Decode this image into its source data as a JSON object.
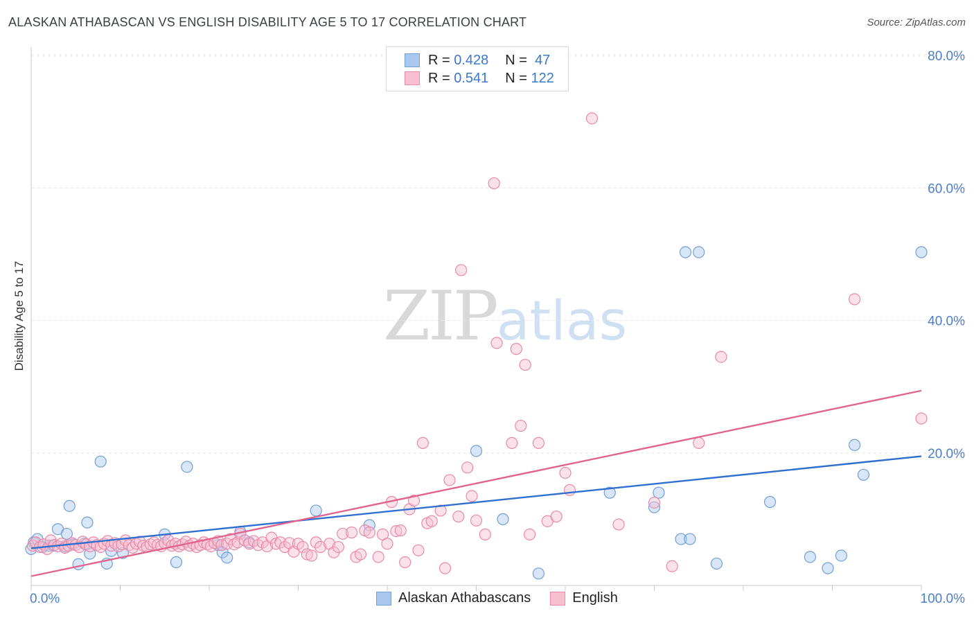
{
  "title": "ALASKAN ATHABASCAN VS ENGLISH DISABILITY AGE 5 TO 17 CORRELATION CHART",
  "source": "Source: ZipAtlas.com",
  "watermark": {
    "zip": "ZIP",
    "atlas": "atlas"
  },
  "legend": {
    "rows": [
      {
        "r_label": "R =",
        "r": "0.428",
        "n_label": "N =",
        "n": "47",
        "color": "#aac8ee",
        "border": "#6f9fd8"
      },
      {
        "r_label": "R =",
        "r": "0.541",
        "n_label": "N =",
        "n": "122",
        "color": "#f7bfd0",
        "border": "#e889a8"
      }
    ]
  },
  "bottom_legend": [
    {
      "label": "Alaskan Athabascans",
      "color": "#aac8ee",
      "border": "#6f9fd8"
    },
    {
      "label": "English",
      "color": "#f7bfd0",
      "border": "#e889a8"
    }
  ],
  "chart_data": {
    "type": "scatter",
    "title": "ALASKAN ATHABASCAN VS ENGLISH DISABILITY AGE 5 TO 17 CORRELATION CHART",
    "xlabel": "",
    "ylabel": "Disability Age 5 to 17",
    "xlim": [
      0,
      100
    ],
    "ylim": [
      0,
      82
    ],
    "x_tick_labels": [
      "0.0%",
      "100.0%"
    ],
    "y_ticks": [
      20,
      40,
      60,
      80
    ],
    "y_tick_labels": [
      "20.0%",
      "40.0%",
      "60.0%",
      "80.0%"
    ],
    "grid": true,
    "series": [
      {
        "name": "Alaskan Athabascans",
        "color": "#6f9fd8",
        "fill": "#aac8ee",
        "trend": [
          [
            0,
            5.6
          ],
          [
            100,
            19.5
          ]
        ],
        "points": [
          [
            0.3,
            6.5
          ],
          [
            0.7,
            7
          ],
          [
            1.3,
            5.8
          ],
          [
            2,
            6
          ],
          [
            3,
            8.5
          ],
          [
            3.8,
            5.9
          ],
          [
            4,
            7.8
          ],
          [
            4.3,
            12
          ],
          [
            4.7,
            6.2
          ],
          [
            5.3,
            3.2
          ],
          [
            6,
            6.3
          ],
          [
            6.3,
            9.5
          ],
          [
            6.6,
            4.8
          ],
          [
            7.8,
            18.7
          ],
          [
            8.5,
            3.3
          ],
          [
            9,
            5.2
          ],
          [
            10.3,
            4.9
          ],
          [
            15,
            7.7
          ],
          [
            16.3,
            3.5
          ],
          [
            17.5,
            17.9
          ],
          [
            21,
            6.1
          ],
          [
            21.5,
            5
          ],
          [
            22,
            4.2
          ],
          [
            23.5,
            8.1
          ],
          [
            24.5,
            6.5
          ],
          [
            32,
            11.3
          ],
          [
            38,
            9.1
          ],
          [
            50,
            20.3
          ],
          [
            53,
            10
          ],
          [
            57,
            1.8
          ],
          [
            65,
            14
          ],
          [
            70,
            11.8
          ],
          [
            70.5,
            14
          ],
          [
            73,
            7
          ],
          [
            73.5,
            50.3
          ],
          [
            74,
            7
          ],
          [
            75,
            50.3
          ],
          [
            77,
            3.3
          ],
          [
            83,
            12.6
          ],
          [
            87.5,
            4.3
          ],
          [
            89.5,
            2.6
          ],
          [
            91,
            4.5
          ],
          [
            92.5,
            21.2
          ],
          [
            93.5,
            16.7
          ],
          [
            100,
            50.3
          ],
          [
            0,
            5.5
          ],
          [
            2.5,
            6
          ]
        ]
      },
      {
        "name": "English",
        "color": "#e889a8",
        "fill": "#f7bfd0",
        "trend": [
          [
            0,
            1.4
          ],
          [
            100,
            29.4
          ]
        ],
        "points": [
          [
            0.2,
            6
          ],
          [
            0.5,
            6.5
          ],
          [
            1,
            5.8
          ],
          [
            1.4,
            6.2
          ],
          [
            1.8,
            5.5
          ],
          [
            2.2,
            6.8
          ],
          [
            2.6,
            6.1
          ],
          [
            3,
            5.9
          ],
          [
            3.4,
            6.3
          ],
          [
            3.8,
            5.7
          ],
          [
            4.2,
            6
          ],
          [
            4.6,
            6.4
          ],
          [
            5,
            6.1
          ],
          [
            5.4,
            5.8
          ],
          [
            5.8,
            6.6
          ],
          [
            6.2,
            6.2
          ],
          [
            6.6,
            5.9
          ],
          [
            7,
            6.5
          ],
          [
            7.4,
            6.1
          ],
          [
            7.8,
            5.8
          ],
          [
            8.2,
            6.3
          ],
          [
            8.6,
            6.7
          ],
          [
            9,
            6
          ],
          [
            9.4,
            6.4
          ],
          [
            9.8,
            5.9
          ],
          [
            10.2,
            6.2
          ],
          [
            10.6,
            6.8
          ],
          [
            11,
            6.1
          ],
          [
            11.4,
            5.7
          ],
          [
            11.8,
            6.3
          ],
          [
            12.2,
            6.6
          ],
          [
            12.6,
            6
          ],
          [
            13,
            5.8
          ],
          [
            13.4,
            6.2
          ],
          [
            13.8,
            6.5
          ],
          [
            14.2,
            6.1
          ],
          [
            14.6,
            5.9
          ],
          [
            15,
            6.4
          ],
          [
            15.4,
            6.8
          ],
          [
            15.8,
            6
          ],
          [
            16.2,
            6.3
          ],
          [
            16.6,
            5.9
          ],
          [
            17,
            6.2
          ],
          [
            17.4,
            6.6
          ],
          [
            17.8,
            6
          ],
          [
            18.2,
            6.3
          ],
          [
            18.6,
            5.8
          ],
          [
            19,
            6.1
          ],
          [
            19.4,
            6.5
          ],
          [
            19.8,
            6.2
          ],
          [
            20.2,
            5.9
          ],
          [
            20.6,
            6.4
          ],
          [
            21,
            6.7
          ],
          [
            21.4,
            6.1
          ],
          [
            22,
            6.3
          ],
          [
            22.4,
            7
          ],
          [
            22.8,
            6.2
          ],
          [
            23.2,
            6.5
          ],
          [
            23.5,
            7.8
          ],
          [
            24,
            6.8
          ],
          [
            24.5,
            6.3
          ],
          [
            25,
            6.7
          ],
          [
            25.5,
            6.1
          ],
          [
            26,
            6.5
          ],
          [
            26.5,
            5.9
          ],
          [
            27,
            7.2
          ],
          [
            27.5,
            6.3
          ],
          [
            28,
            6.5
          ],
          [
            28.5,
            5.8
          ],
          [
            29,
            6.4
          ],
          [
            29.5,
            5.1
          ],
          [
            30,
            6.3
          ],
          [
            30.5,
            5.8
          ],
          [
            31,
            4.7
          ],
          [
            31.5,
            4.5
          ],
          [
            32,
            6.5
          ],
          [
            32.5,
            5.8
          ],
          [
            33.5,
            6.3
          ],
          [
            34,
            5
          ],
          [
            34.5,
            5.8
          ],
          [
            35,
            7.8
          ],
          [
            36,
            8
          ],
          [
            36.5,
            4.3
          ],
          [
            37,
            4.7
          ],
          [
            37.5,
            8.3
          ],
          [
            38,
            8
          ],
          [
            39,
            4.3
          ],
          [
            39.5,
            7.7
          ],
          [
            40,
            6.3
          ],
          [
            40.5,
            12.6
          ],
          [
            41,
            8.2
          ],
          [
            41.5,
            8.3
          ],
          [
            42,
            3.5
          ],
          [
            42.5,
            11.5
          ],
          [
            43,
            12.8
          ],
          [
            43.5,
            5.3
          ],
          [
            44,
            21.5
          ],
          [
            44.5,
            9.4
          ],
          [
            45,
            9.7
          ],
          [
            46,
            11.3
          ],
          [
            46.5,
            2.6
          ],
          [
            47,
            15.9
          ],
          [
            48,
            10.4
          ],
          [
            48.3,
            47.6
          ],
          [
            49,
            17.8
          ],
          [
            49.5,
            13.5
          ],
          [
            50,
            9.8
          ],
          [
            51,
            7.7
          ],
          [
            52,
            60.7
          ],
          [
            52.3,
            36.6
          ],
          [
            54,
            21.5
          ],
          [
            54.5,
            35.7
          ],
          [
            55,
            24.1
          ],
          [
            55.5,
            33.3
          ],
          [
            56,
            7.7
          ],
          [
            57,
            21.5
          ],
          [
            58,
            9.7
          ],
          [
            59,
            10.4
          ],
          [
            60,
            17
          ],
          [
            60.5,
            14.4
          ],
          [
            63,
            70.5
          ],
          [
            66,
            9.2
          ],
          [
            70,
            12.5
          ],
          [
            72,
            2.9
          ],
          [
            75,
            21.5
          ],
          [
            77.5,
            34.5
          ],
          [
            92.5,
            43.2
          ],
          [
            100,
            25.2
          ]
        ]
      }
    ]
  }
}
